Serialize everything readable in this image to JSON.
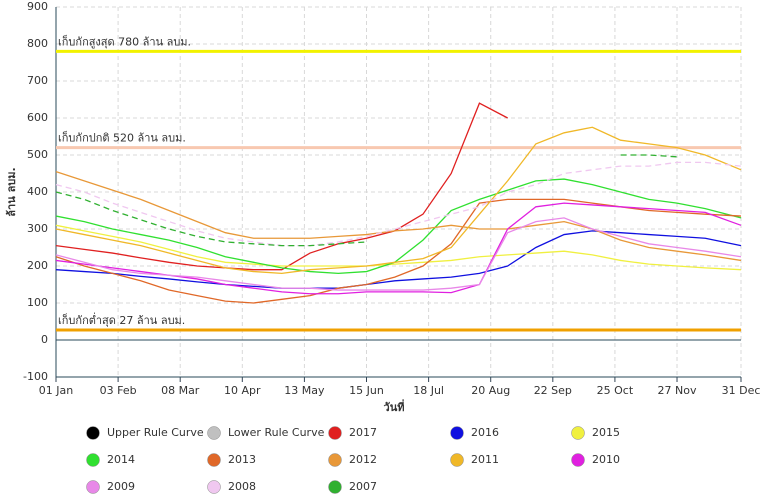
{
  "chart_data": {
    "type": "line",
    "x_label": "วันที่",
    "y_label": "ล้าน ลบม.",
    "xlim": [
      0,
      364
    ],
    "xticks": [
      {
        "value": 0,
        "label": "01 Jan"
      },
      {
        "value": 33,
        "label": "03 Feb"
      },
      {
        "value": 66,
        "label": "08 Mar"
      },
      {
        "value": 99,
        "label": "10 Apr"
      },
      {
        "value": 132,
        "label": "13 May"
      },
      {
        "value": 165,
        "label": "15 Jun"
      },
      {
        "value": 198,
        "label": "18 Jul"
      },
      {
        "value": 231,
        "label": "20 Aug"
      },
      {
        "value": 264,
        "label": "22 Sep"
      },
      {
        "value": 297,
        "label": "25 Oct"
      },
      {
        "value": 330,
        "label": "27 Nov"
      },
      {
        "value": 364,
        "label": "31 Dec"
      }
    ],
    "ylim": [
      -100,
      900
    ],
    "yticks": [
      -100,
      0,
      100,
      200,
      300,
      400,
      500,
      600,
      700,
      800,
      900
    ],
    "grid": true,
    "reference_lines": [
      {
        "value": 780,
        "label": "เก็บกักสูงสุด 780 ล้าน ลบม.",
        "color": "#f2f200"
      },
      {
        "value": 520,
        "label": "เก็บกักปกติ 520 ล้าน ลบม.",
        "color": "#f8c8b0"
      },
      {
        "value": 27,
        "label": "เก็บกักต่ำสุด 27 ล้าน ลบม.",
        "color": "#f0a000"
      }
    ],
    "x": [
      0,
      15,
      30,
      45,
      60,
      75,
      90,
      105,
      120,
      135,
      150,
      165,
      180,
      195,
      210,
      225,
      240,
      255,
      270,
      285,
      300,
      315,
      330,
      345,
      364
    ],
    "series": [
      {
        "name": "Upper Rule Curve",
        "color": "#000000",
        "values": [
          null,
          null,
          null,
          null,
          null,
          null,
          null,
          null,
          null,
          null,
          null,
          null,
          null,
          null,
          null,
          null,
          null,
          null,
          null,
          null,
          null,
          null,
          null,
          null,
          null
        ]
      },
      {
        "name": "Lower Rule Curve",
        "color": "#c0c0c0",
        "values": [
          null,
          null,
          null,
          null,
          null,
          null,
          null,
          null,
          null,
          null,
          null,
          null,
          null,
          null,
          null,
          null,
          null,
          null,
          null,
          null,
          null,
          null,
          null,
          null,
          null
        ]
      },
      {
        "name": "2017",
        "color": "#e02020",
        "values": [
          255,
          245,
          235,
          222,
          210,
          200,
          195,
          190,
          190,
          235,
          260,
          275,
          295,
          340,
          450,
          640,
          600,
          null,
          null,
          null,
          null,
          null,
          null,
          null,
          null
        ]
      },
      {
        "name": "2016",
        "color": "#1010e0",
        "values": [
          190,
          185,
          180,
          172,
          165,
          157,
          150,
          145,
          140,
          140,
          140,
          150,
          160,
          165,
          170,
          180,
          200,
          250,
          285,
          295,
          290,
          285,
          280,
          275,
          255
        ]
      },
      {
        "name": "2015",
        "color": "#f0f040",
        "values": [
          310,
          295,
          280,
          265,
          245,
          225,
          210,
          205,
          200,
          200,
          200,
          200,
          205,
          210,
          215,
          225,
          230,
          235,
          240,
          230,
          215,
          205,
          200,
          195,
          190
        ]
      },
      {
        "name": "2014",
        "color": "#30e030",
        "values": [
          335,
          320,
          300,
          285,
          270,
          250,
          225,
          210,
          195,
          185,
          180,
          185,
          210,
          270,
          350,
          380,
          405,
          430,
          435,
          420,
          400,
          380,
          370,
          355,
          330
        ]
      },
      {
        "name": "2013",
        "color": "#e06828",
        "values": [
          225,
          200,
          180,
          160,
          135,
          120,
          105,
          100,
          110,
          120,
          140,
          150,
          170,
          200,
          260,
          370,
          380,
          380,
          380,
          370,
          360,
          350,
          345,
          340,
          335
        ]
      },
      {
        "name": "2012",
        "color": "#e89838",
        "values": [
          455,
          430,
          405,
          380,
          350,
          320,
          290,
          275,
          275,
          275,
          280,
          285,
          295,
          300,
          310,
          300,
          300,
          310,
          320,
          300,
          270,
          250,
          240,
          230,
          215
        ]
      },
      {
        "name": "2011",
        "color": "#f0b828",
        "values": [
          300,
          285,
          270,
          255,
          235,
          215,
          195,
          185,
          180,
          190,
          195,
          200,
          210,
          220,
          250,
          340,
          430,
          530,
          560,
          575,
          540,
          530,
          520,
          500,
          460
        ]
      },
      {
        "name": "2010",
        "color": "#e020e0",
        "values": [
          215,
          205,
          195,
          185,
          175,
          165,
          150,
          140,
          130,
          125,
          125,
          130,
          130,
          130,
          128,
          150,
          300,
          360,
          370,
          365,
          360,
          355,
          350,
          345,
          310
        ]
      },
      {
        "name": "2009",
        "color": "#e888e8",
        "values": [
          230,
          210,
          190,
          180,
          175,
          170,
          160,
          150,
          140,
          140,
          135,
          135,
          135,
          135,
          140,
          150,
          290,
          320,
          330,
          300,
          280,
          260,
          250,
          240,
          225
        ]
      },
      {
        "name": "2008",
        "color": "#f0c8f0",
        "dash": true,
        "values": [
          420,
          400,
          370,
          345,
          320,
          295,
          275,
          265,
          255,
          255,
          265,
          280,
          300,
          320,
          340,
          360,
          400,
          420,
          450,
          460,
          470,
          470,
          480,
          480,
          470
        ]
      },
      {
        "name": "2007",
        "color": "#30b030",
        "dash": true,
        "values": [
          400,
          380,
          350,
          325,
          300,
          280,
          265,
          260,
          255,
          255,
          260,
          265,
          null,
          null,
          null,
          null,
          null,
          null,
          null,
          null,
          500,
          500,
          495,
          null,
          null
        ]
      }
    ]
  }
}
